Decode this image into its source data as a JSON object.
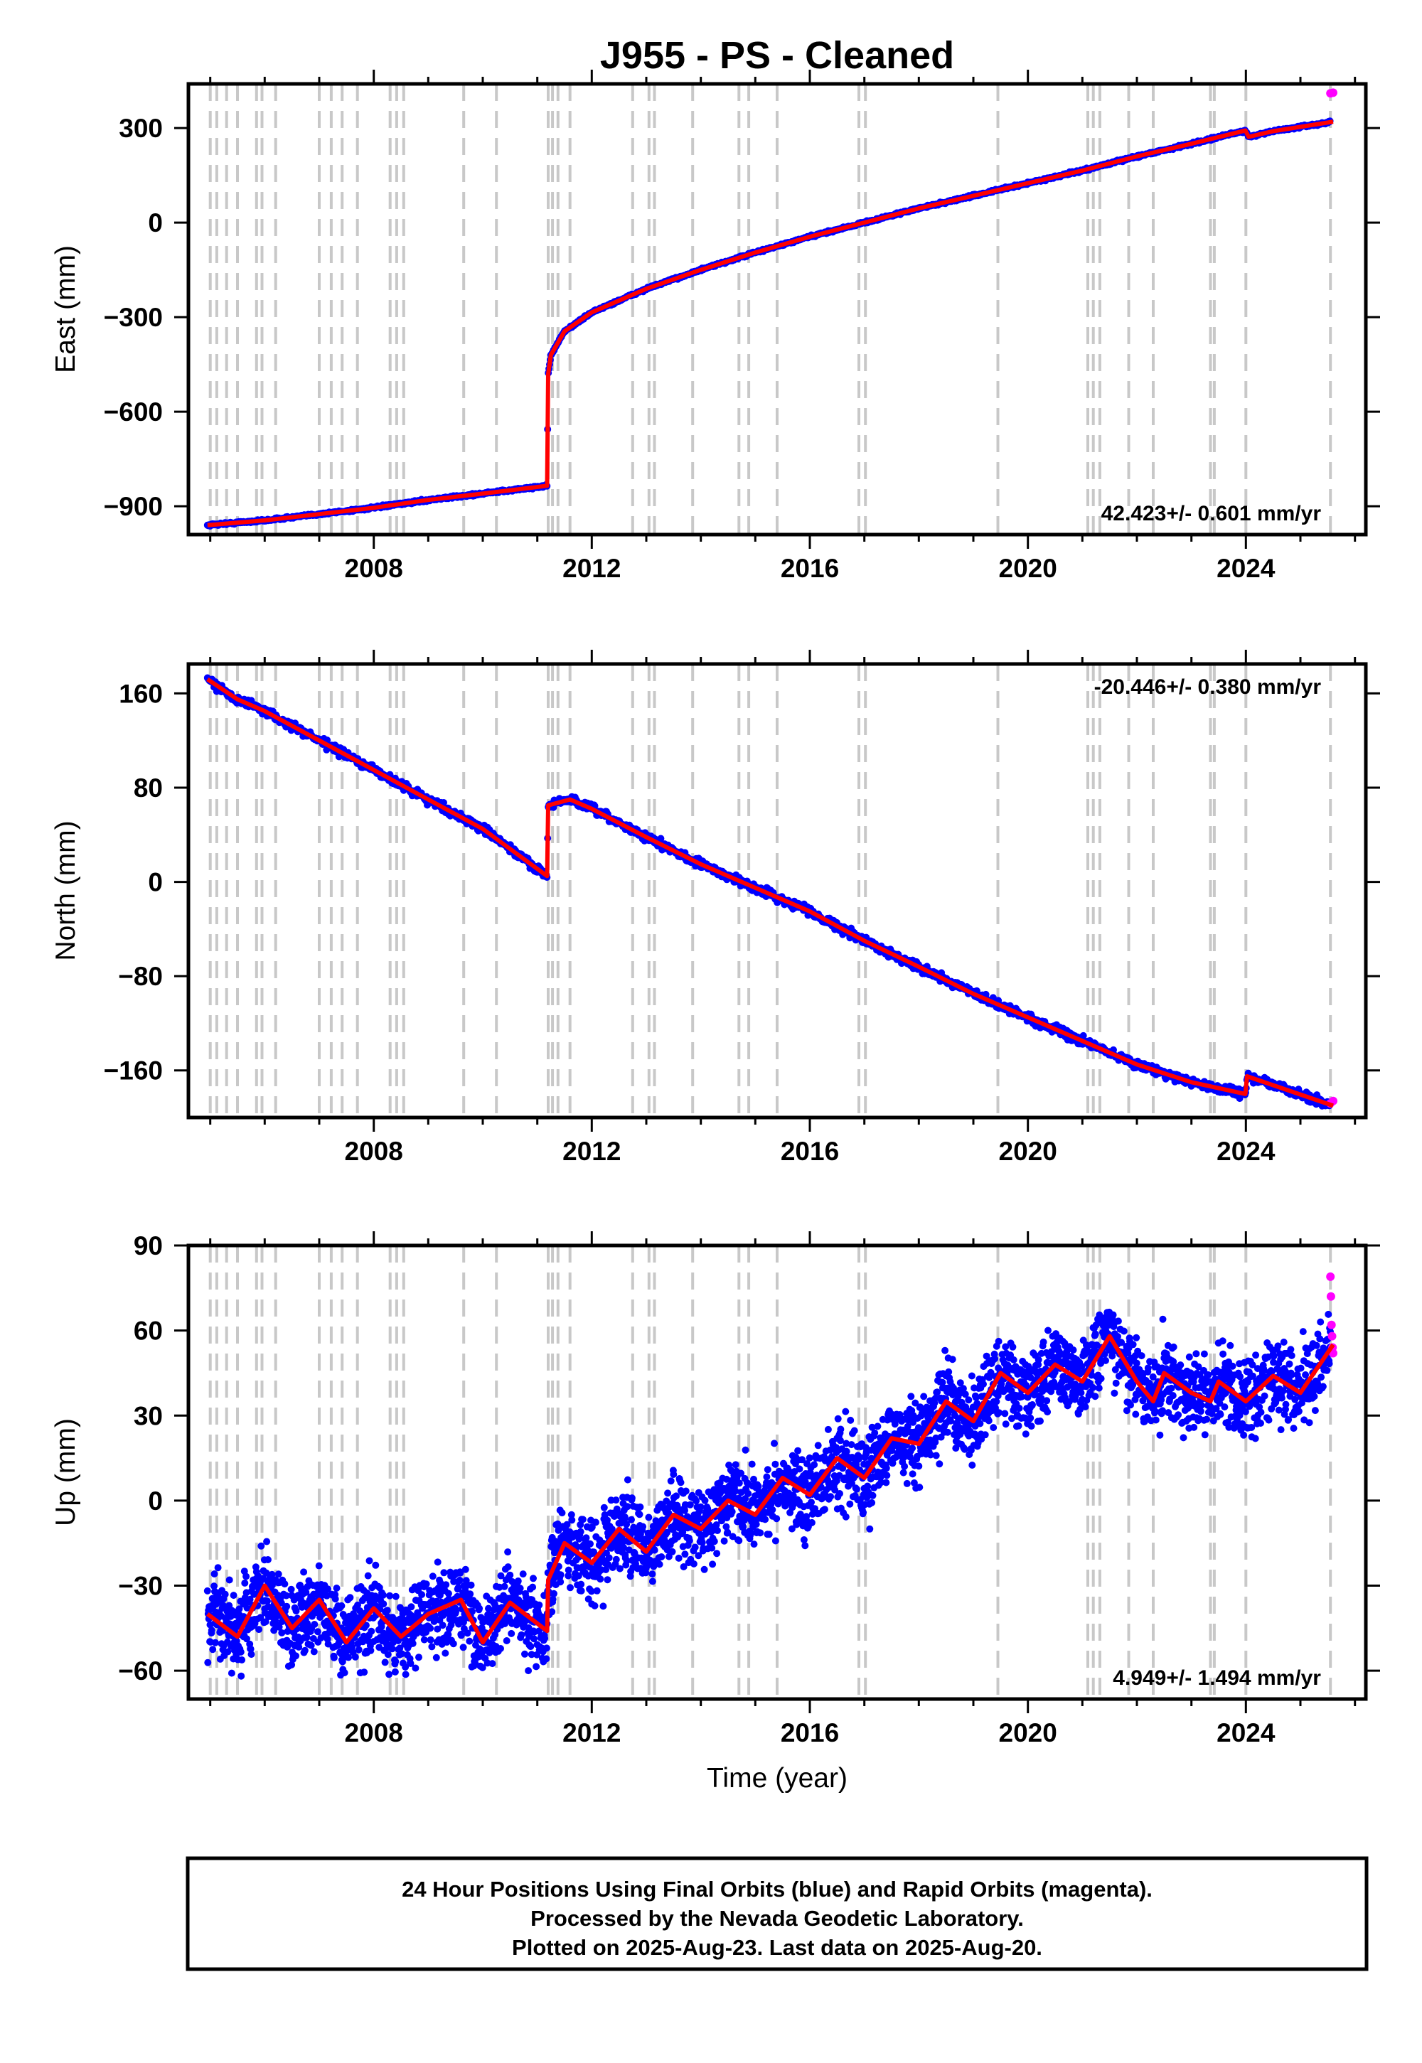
{
  "chart_data": {
    "type": "scatter",
    "title": "J955  - PS - Cleaned",
    "xlabel": "Time (year)",
    "xlim": [
      2004.6,
      2026.2
    ],
    "x_ticks": [
      2008,
      2012,
      2016,
      2020,
      2024
    ],
    "x_tick_labels": [
      "2008",
      "2012",
      "2016",
      "2020",
      "2024"
    ],
    "colors": {
      "final_orbits": "#0000ff",
      "rapid_orbits": "#ff00ff",
      "model": "#ff0000",
      "event_lines": "#c8c8c8"
    },
    "event_lines": [
      2005.0,
      2005.12,
      2005.3,
      2005.5,
      2005.85,
      2005.95,
      2006.2,
      2007.0,
      2007.22,
      2007.42,
      2007.7,
      2008.3,
      2008.42,
      2008.55,
      2009.65,
      2010.25,
      2011.2,
      2011.28,
      2011.38,
      2011.6,
      2012.75,
      2013.05,
      2013.15,
      2013.85,
      2014.7,
      2014.88,
      2015.4,
      2016.9,
      2017.02,
      2019.45,
      2021.1,
      2021.2,
      2021.32,
      2021.85,
      2022.3,
      2023.35,
      2023.42,
      2024.0,
      2025.55
    ],
    "panels": [
      {
        "name": "East",
        "ylabel": "East (mm)",
        "ylim": [
          -990,
          440
        ],
        "y_ticks": [
          -900,
          -600,
          -300,
          0,
          300
        ],
        "y_tick_labels": [
          "−900",
          "−600",
          "−300",
          "0",
          "300"
        ],
        "rate_text": "42.423+/- 0.601 mm/yr",
        "rate_position": "bottom-right",
        "model": [
          [
            2004.95,
            -960
          ],
          [
            2006,
            -945
          ],
          [
            2007,
            -925
          ],
          [
            2008,
            -905
          ],
          [
            2009,
            -880
          ],
          [
            2010,
            -860
          ],
          [
            2011.18,
            -835
          ],
          [
            2011.2,
            -480
          ],
          [
            2011.25,
            -420
          ],
          [
            2011.5,
            -345
          ],
          [
            2012,
            -285
          ],
          [
            2013,
            -210
          ],
          [
            2014,
            -150
          ],
          [
            2015,
            -95
          ],
          [
            2016,
            -45
          ],
          [
            2017,
            0
          ],
          [
            2018,
            45
          ],
          [
            2019,
            85
          ],
          [
            2020,
            125
          ],
          [
            2021,
            165
          ],
          [
            2022,
            210
          ],
          [
            2023,
            250
          ],
          [
            2023.99,
            292
          ],
          [
            2024.05,
            272
          ],
          [
            2024.5,
            290
          ],
          [
            2025.6,
            320
          ]
        ],
        "rapid_points": [
          [
            2025.55,
            410
          ],
          [
            2025.6,
            412
          ]
        ]
      },
      {
        "name": "North",
        "ylabel": "North (mm)",
        "ylim": [
          -200,
          185
        ],
        "y_ticks": [
          -160,
          -80,
          0,
          80,
          160
        ],
        "y_tick_labels": [
          "−160",
          "−80",
          "0",
          "80",
          "160"
        ],
        "rate_text": "-20.446+/- 0.380 mm/yr",
        "rate_position": "top-right",
        "model": [
          [
            2004.95,
            172
          ],
          [
            2005.5,
            155
          ],
          [
            2006,
            145
          ],
          [
            2007,
            120
          ],
          [
            2008,
            95
          ],
          [
            2009,
            70
          ],
          [
            2010,
            45
          ],
          [
            2011.18,
            5
          ],
          [
            2011.2,
            65
          ],
          [
            2011.6,
            70
          ],
          [
            2012,
            62
          ],
          [
            2013,
            38
          ],
          [
            2014,
            15
          ],
          [
            2015,
            -5
          ],
          [
            2016,
            -25
          ],
          [
            2017,
            -50
          ],
          [
            2018,
            -72
          ],
          [
            2019,
            -95
          ],
          [
            2020,
            -115
          ],
          [
            2021,
            -135
          ],
          [
            2022,
            -155
          ],
          [
            2023,
            -170
          ],
          [
            2023.99,
            -180
          ],
          [
            2024.02,
            -165
          ],
          [
            2025.6,
            -190
          ]
        ],
        "rapid_points": [
          [
            2025.55,
            -188
          ],
          [
            2025.6,
            -186
          ]
        ]
      },
      {
        "name": "Up",
        "ylabel": "Up (mm)",
        "ylim": [
          -70,
          90
        ],
        "y_ticks": [
          -60,
          -30,
          0,
          30,
          60,
          90
        ],
        "y_tick_labels": [
          "−60",
          "−30",
          "0",
          "30",
          "60",
          "90"
        ],
        "rate_text": "4.949+/- 1.494 mm/yr",
        "rate_position": "bottom-right",
        "model": [
          [
            2004.95,
            -40
          ],
          [
            2005.5,
            -48
          ],
          [
            2006,
            -30
          ],
          [
            2006.5,
            -45
          ],
          [
            2007,
            -35
          ],
          [
            2007.5,
            -50
          ],
          [
            2008,
            -38
          ],
          [
            2008.5,
            -48
          ],
          [
            2009,
            -40
          ],
          [
            2009.6,
            -35
          ],
          [
            2010,
            -50
          ],
          [
            2010.5,
            -36
          ],
          [
            2011.18,
            -46
          ],
          [
            2011.2,
            -28
          ],
          [
            2011.5,
            -15
          ],
          [
            2012,
            -22
          ],
          [
            2012.5,
            -10
          ],
          [
            2013,
            -18
          ],
          [
            2013.5,
            -5
          ],
          [
            2014,
            -10
          ],
          [
            2014.5,
            0
          ],
          [
            2015,
            -5
          ],
          [
            2015.5,
            8
          ],
          [
            2016,
            2
          ],
          [
            2016.5,
            15
          ],
          [
            2017,
            8
          ],
          [
            2017.5,
            22
          ],
          [
            2018,
            20
          ],
          [
            2018.5,
            35
          ],
          [
            2019,
            28
          ],
          [
            2019.5,
            45
          ],
          [
            2020,
            38
          ],
          [
            2020.5,
            48
          ],
          [
            2021,
            42
          ],
          [
            2021.5,
            58
          ],
          [
            2022,
            42
          ],
          [
            2022.3,
            35
          ],
          [
            2022.5,
            45
          ],
          [
            2023,
            38
          ],
          [
            2023.35,
            35
          ],
          [
            2023.5,
            42
          ],
          [
            2024,
            35
          ],
          [
            2024.5,
            44
          ],
          [
            2025,
            38
          ],
          [
            2025.6,
            55
          ]
        ],
        "rapid_points": [
          [
            2025.55,
            79
          ],
          [
            2025.56,
            72
          ],
          [
            2025.57,
            62
          ],
          [
            2025.58,
            58
          ],
          [
            2025.59,
            54
          ],
          [
            2025.6,
            52
          ]
        ]
      }
    ]
  },
  "caption": {
    "lines": [
      "24 Hour Positions Using Final Orbits (blue) and Rapid Orbits (magenta).",
      "Processed by the Nevada Geodetic Laboratory.",
      "Plotted on 2025-Aug-23. Last data on 2025-Aug-20."
    ]
  }
}
